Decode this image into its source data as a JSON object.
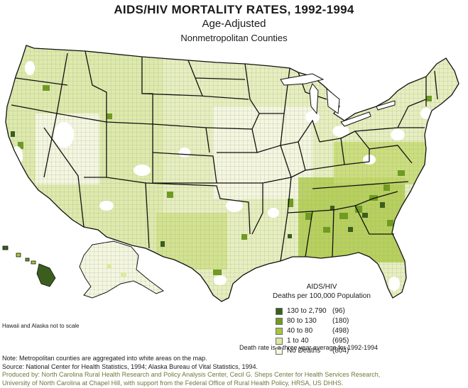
{
  "title": "AIDS/HIV MORTALITY RATES, 1992-1994",
  "subtitle": "Age-Adjusted",
  "subtitle2": "Nonmetropolitan Counties",
  "legend": {
    "title_line1": "AIDS/HIV",
    "title_line2": "Deaths per 100,000 Population",
    "items": [
      {
        "label": "130 to 2,790",
        "count": "(96)",
        "color": "#3b5e1f"
      },
      {
        "label": "80 to 130",
        "count": "(180)",
        "color": "#6f9a23"
      },
      {
        "label": "40 to 80",
        "count": "(498)",
        "color": "#a7c73a"
      },
      {
        "label": "1 to 40",
        "count": "(695)",
        "color": "#dce9a0"
      },
      {
        "label": "No Deaths",
        "count": "(804)",
        "color": "#f6f8e4"
      }
    ]
  },
  "scale_note": "Hawaii and Alaska not to scale",
  "avg_note": "Death rate is a three year average for 1992-1994",
  "notes": {
    "note": "Note: Metropolitan counties are aggregated into white areas on the map.",
    "source": "Source: National Center for Health Statistics, 1994; Alaska Bureau of Vital Statistics, 1994.",
    "produced1": "Produced by: North Carolina Rural Health Research and Policy Analysis Center, Cecil G. Sheps Center for Health Services Research,",
    "produced2": "University of North Carolina at Chapel Hill, with support from the Federal Office of Rural Health Policy, HRSA, US DHHS."
  }
}
